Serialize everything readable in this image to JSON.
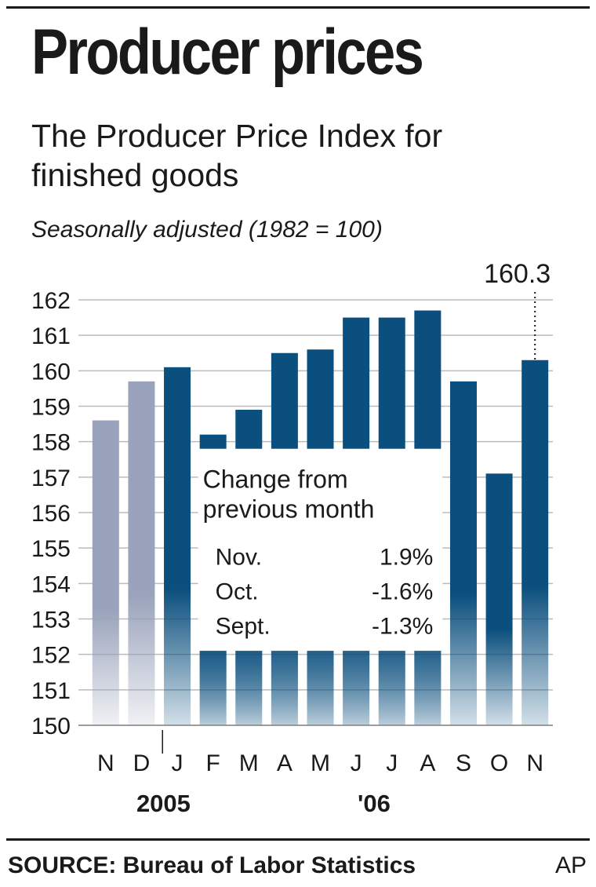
{
  "title": "Producer prices",
  "subtitle": "The Producer Price Index for finished goods",
  "note": "Seasonally adjusted (1982 = 100)",
  "source": "SOURCE: Bureau of Labor Statistics",
  "credit": "AP",
  "colors": {
    "bar_2005": "#9aa3bb",
    "bar_2006": "#0b4f7e",
    "grid": "#bbbbbb",
    "text": "#1a1a1a"
  },
  "chart_data": {
    "type": "bar",
    "categories": [
      "N",
      "D",
      "J",
      "F",
      "M",
      "A",
      "M",
      "J",
      "J",
      "A",
      "S",
      "O",
      "N"
    ],
    "year_labels": [
      "2005",
      "'06"
    ],
    "values": [
      158.6,
      159.7,
      160.1,
      158.2,
      158.9,
      160.5,
      160.6,
      161.5,
      161.5,
      161.7,
      159.7,
      157.1,
      160.3
    ],
    "highlight_label": "160.3",
    "yticks": [
      150,
      151,
      152,
      153,
      154,
      155,
      156,
      157,
      158,
      159,
      160,
      161,
      162
    ],
    "ylim": [
      150,
      162
    ],
    "grid": true,
    "inset": {
      "title": "Change from previous month",
      "rows": [
        {
          "month": "Nov.",
          "change": "1.9%"
        },
        {
          "month": "Oct.",
          "change": "-1.6%"
        },
        {
          "month": "Sept.",
          "change": "-1.3%"
        }
      ]
    }
  }
}
